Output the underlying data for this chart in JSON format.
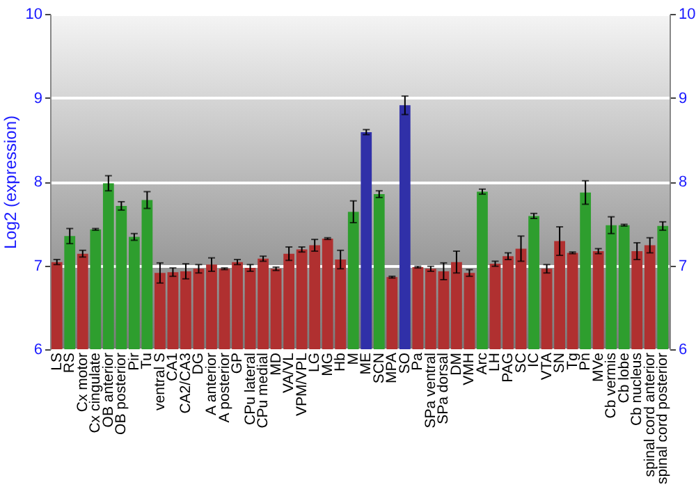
{
  "chart_data": {
    "type": "bar",
    "ylabel": "Log2 (expression)",
    "categories": [
      "LS",
      "RS",
      "Cx motor",
      "Cx cingulate",
      "OB anterior",
      "OB posterior",
      "Pir",
      "Tu",
      "ventral S",
      "CA1",
      "CA2/CA3",
      "DG",
      "A anterior",
      "A posterior",
      "GP",
      "CPu lateral",
      "CPu medial",
      "MD",
      "VA/VL",
      "VPM/VPL",
      "LG",
      "MG",
      "Hb",
      "M",
      "ME",
      "SCN",
      "MPA",
      "SO",
      "Pa",
      "SPa ventral",
      "SPa dorsal",
      "DM",
      "VMH",
      "Arc",
      "LH",
      "PAG",
      "SC",
      "IC",
      "VTA",
      "SN",
      "Tg",
      "Pn",
      "MVe",
      "Cb vermis",
      "Cb lobe",
      "Cb nucleus",
      "spinal cord anterior",
      "spinal cord posterior"
    ],
    "values": [
      7.04,
      7.35,
      7.14,
      7.43,
      7.98,
      7.71,
      7.34,
      7.78,
      6.91,
      6.92,
      6.93,
      6.96,
      7.01,
      6.96,
      7.04,
      6.97,
      7.08,
      6.96,
      7.14,
      7.19,
      7.24,
      7.32,
      7.07,
      7.64,
      8.59,
      7.85,
      6.86,
      8.91,
      6.98,
      6.96,
      6.93,
      7.04,
      6.91,
      7.88,
      7.02,
      7.11,
      7.2,
      7.59,
      6.96,
      7.29,
      7.15,
      7.87,
      7.17,
      7.48,
      7.48,
      7.17,
      7.24,
      7.47
    ],
    "errors": [
      0.03,
      0.09,
      0.04,
      0.01,
      0.09,
      0.05,
      0.04,
      0.1,
      0.12,
      0.05,
      0.09,
      0.05,
      0.08,
      0.01,
      0.03,
      0.04,
      0.03,
      0.02,
      0.08,
      0.03,
      0.07,
      0.01,
      0.11,
      0.13,
      0.03,
      0.04,
      0.01,
      0.11,
      0.01,
      0.03,
      0.1,
      0.13,
      0.04,
      0.03,
      0.03,
      0.04,
      0.15,
      0.03,
      0.05,
      0.17,
      0.01,
      0.14,
      0.03,
      0.1,
      0.01,
      0.1,
      0.09,
      0.05
    ],
    "colors": [
      "#b03030",
      "#2e9e2e",
      "#b03030",
      "#2e9e2e",
      "#2e9e2e",
      "#2e9e2e",
      "#2e9e2e",
      "#2e9e2e",
      "#b03030",
      "#b03030",
      "#b03030",
      "#b03030",
      "#b03030",
      "#b03030",
      "#b03030",
      "#b03030",
      "#b03030",
      "#b03030",
      "#b03030",
      "#b03030",
      "#b03030",
      "#b03030",
      "#b03030",
      "#2e9e2e",
      "#3030a8",
      "#2e9e2e",
      "#b03030",
      "#3030a8",
      "#b03030",
      "#b03030",
      "#b03030",
      "#b03030",
      "#b03030",
      "#2e9e2e",
      "#b03030",
      "#b03030",
      "#b03030",
      "#2e9e2e",
      "#b03030",
      "#b03030",
      "#b03030",
      "#2e9e2e",
      "#b03030",
      "#2e9e2e",
      "#2e9e2e",
      "#b03030",
      "#b03030",
      "#2e9e2e"
    ],
    "ylim": [
      6,
      10
    ],
    "yticks": [
      6,
      7,
      8,
      9,
      10
    ],
    "y2lim": [
      6,
      10
    ],
    "y2ticks": [
      6,
      7,
      8,
      9,
      10
    ],
    "grid": "y"
  }
}
